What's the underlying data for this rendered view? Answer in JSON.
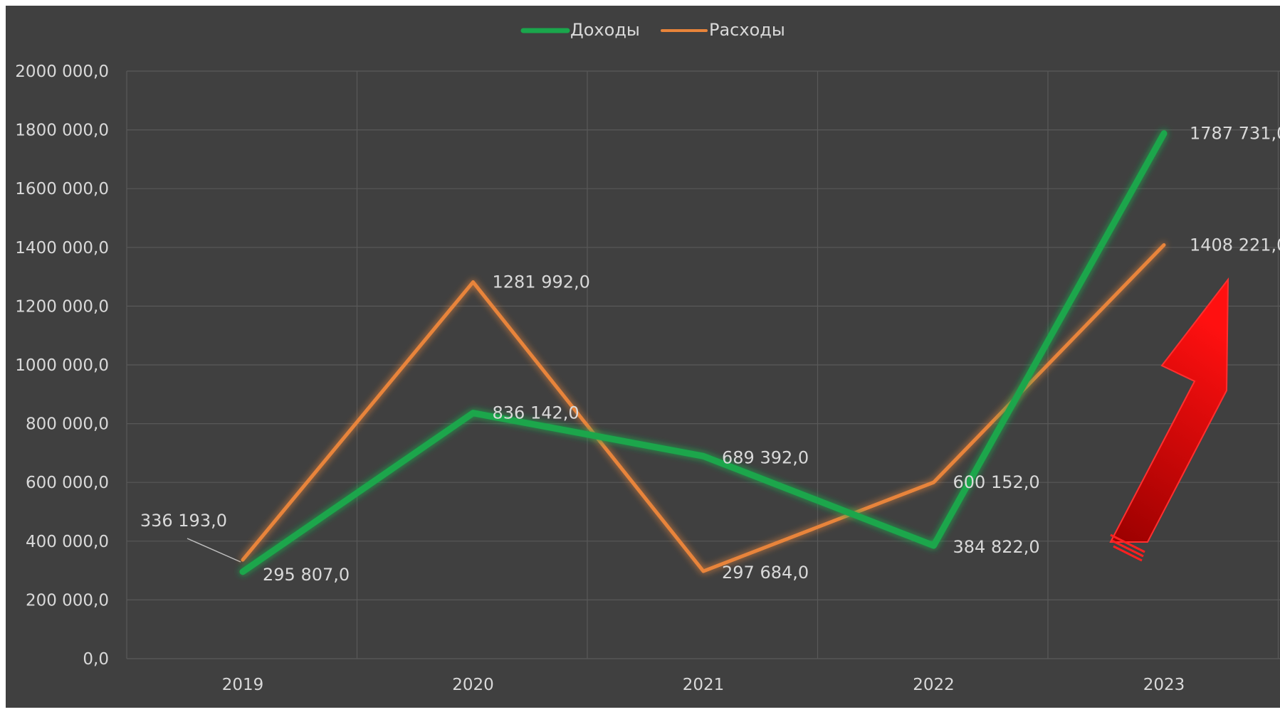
{
  "colors": {
    "background": "#404040",
    "gridline": "#595959",
    "text": "#d9d9d9",
    "income": "#1aa64c",
    "expense": "#e8843a",
    "arrow": "#e00000"
  },
  "chart_data": {
    "type": "line",
    "title": "",
    "xlabel": "",
    "ylabel": "",
    "categories": [
      "2019",
      "2020",
      "2021",
      "2022",
      "2023"
    ],
    "ylim": [
      0,
      2000000
    ],
    "yticks": [
      0,
      200000,
      400000,
      600000,
      800000,
      1000000,
      1200000,
      1400000,
      1600000,
      1800000,
      2000000
    ],
    "ytick_labels": [
      "0,0",
      "200 000,0",
      "400 000,0",
      "600 000,0",
      "800 000,0",
      "1000 000,0",
      "1200 000,0",
      "1400 000,0",
      "1600 000,0",
      "1800 000,0",
      "2000 000,0"
    ],
    "grid": true,
    "legend_position": "top-center",
    "series": [
      {
        "name": "Доходы",
        "color": "#1aa64c",
        "values": [
          295807,
          836142,
          689392,
          384822,
          1787731
        ],
        "labels": [
          "295 807,0",
          "836 142,0",
          "689 392,0",
          "384 822,0",
          "1787 731,0"
        ]
      },
      {
        "name": "Расходы",
        "color": "#e8843a",
        "values": [
          336193,
          1281992,
          297684,
          600152,
          1408221
        ],
        "labels": [
          "336 193,0",
          "1281 992,0",
          "297 684,0",
          "600 152,0",
          "1408 221,0"
        ]
      }
    ],
    "annotations": [
      "red-up-arrow"
    ]
  }
}
